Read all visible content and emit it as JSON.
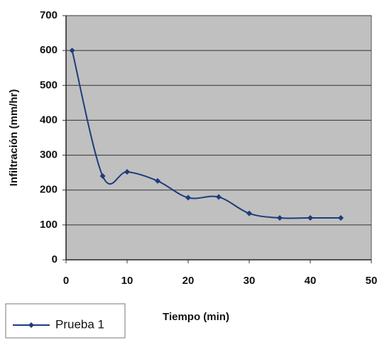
{
  "chart_data": {
    "type": "line",
    "x_label": "Tiempo (min)",
    "y_label": "Infiltración (mm/hr)",
    "series": [
      {
        "name": "Prueba 1",
        "color": "#1f3c7a",
        "x": [
          1,
          6,
          10,
          15,
          20,
          25,
          30,
          35,
          40,
          45
        ],
        "values": [
          600,
          240,
          252,
          226,
          178,
          180,
          133,
          120,
          120,
          120
        ]
      }
    ],
    "xlim": [
      0,
      50
    ],
    "xticks": [
      0,
      10,
      20,
      30,
      40,
      50
    ],
    "ylim": [
      0,
      700
    ],
    "yticks": [
      0,
      100,
      200,
      300,
      400,
      500,
      600,
      700
    ],
    "grid": true,
    "smooth": true,
    "legend": "bottom-left",
    "plot_background": "#c0c0c0"
  }
}
